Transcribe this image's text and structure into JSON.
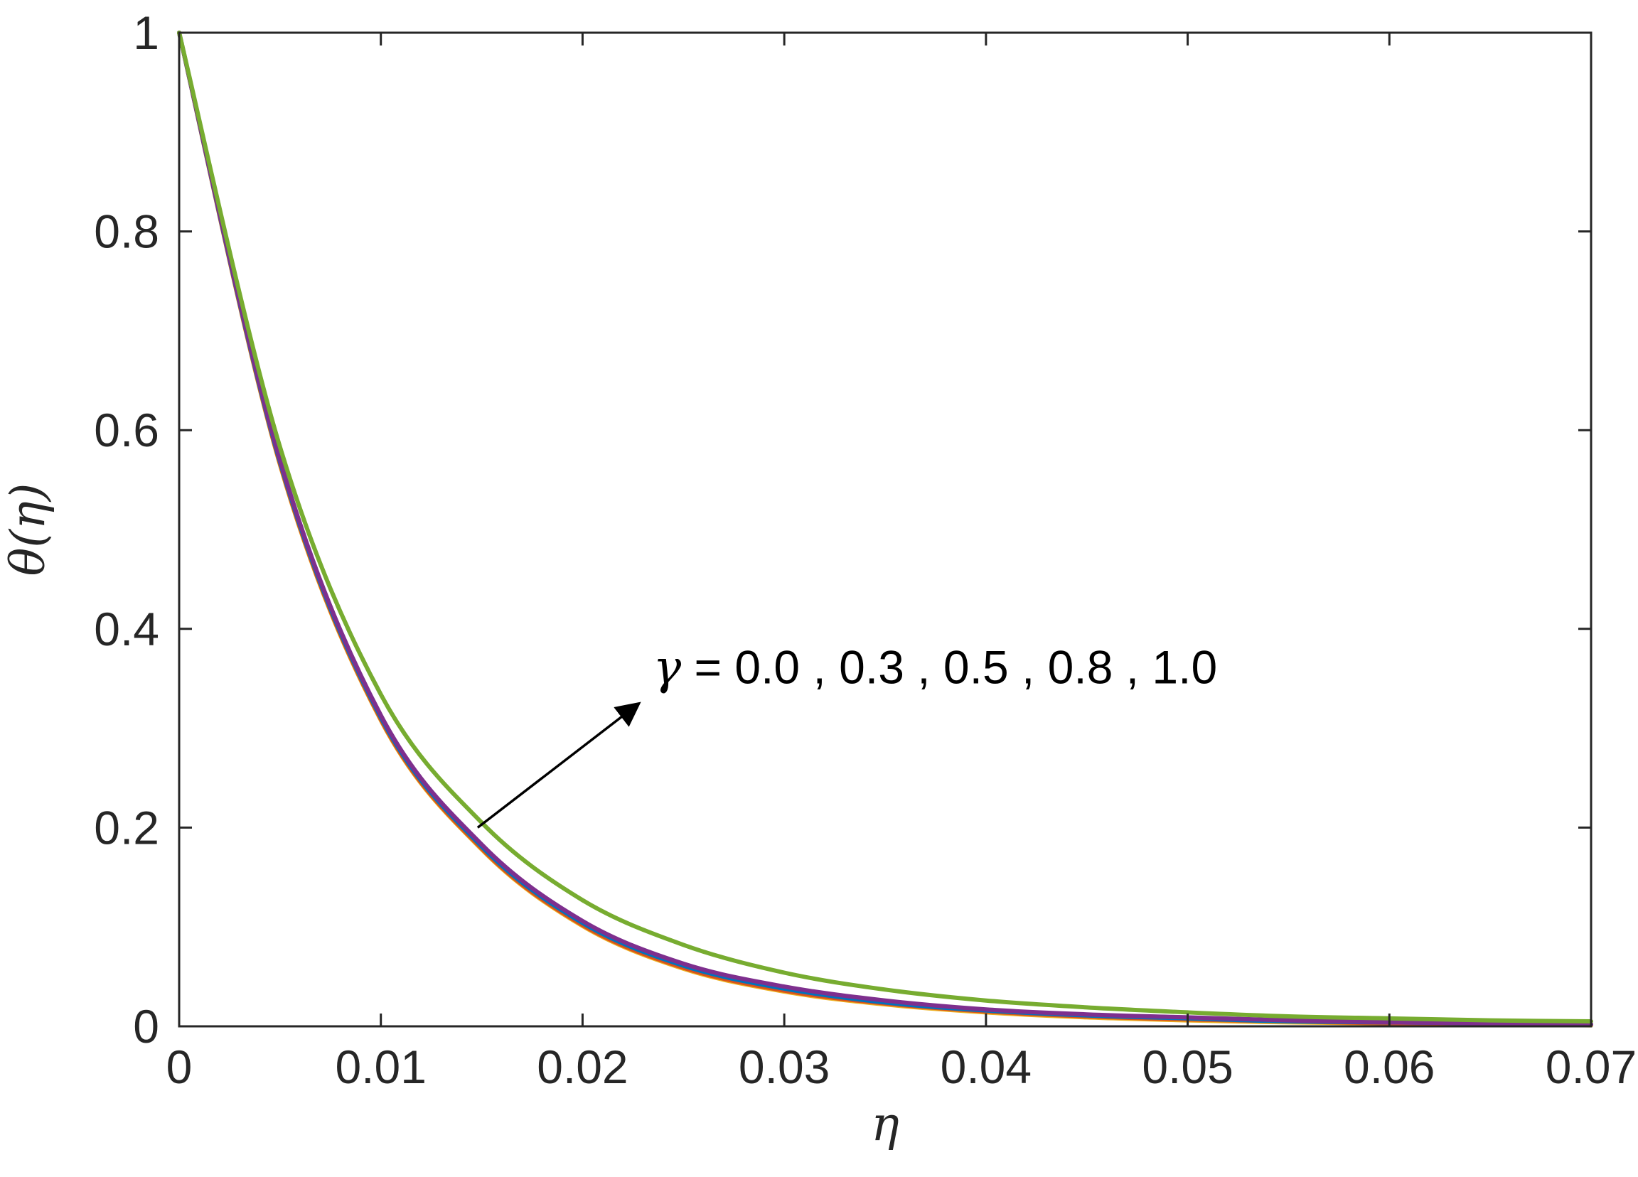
{
  "chart_data": {
    "type": "line",
    "title": "",
    "xlabel": "η",
    "ylabel": "θ(η)",
    "xlim": [
      0,
      0.07
    ],
    "ylim": [
      0,
      1
    ],
    "xticks": [
      0,
      0.01,
      0.02,
      0.03,
      0.04,
      0.05,
      0.06,
      0.07
    ],
    "xtick_labels": [
      "0",
      "0.01",
      "0.02",
      "0.03",
      "0.04",
      "0.05",
      "0.06",
      "0.07"
    ],
    "yticks": [
      0,
      0.2,
      0.4,
      0.6,
      0.8,
      1
    ],
    "ytick_labels": [
      "0",
      "0.2",
      "0.4",
      "0.6",
      "0.8",
      "1"
    ],
    "grid": false,
    "legend": "none",
    "x": [
      0,
      0.005,
      0.01,
      0.015,
      0.02,
      0.025,
      0.03,
      0.035,
      0.04,
      0.045,
      0.05,
      0.055,
      0.06,
      0.065,
      0.07
    ],
    "series": [
      {
        "color": "#EDB120",
        "values": [
          1.0,
          0.565,
          0.308,
          0.178,
          0.101,
          0.058,
          0.035,
          0.022,
          0.014,
          0.009,
          0.006,
          0.004,
          0.003,
          0.002,
          0.001
        ]
      },
      {
        "color": "#D95319",
        "values": [
          1.0,
          0.566,
          0.309,
          0.179,
          0.102,
          0.059,
          0.036,
          0.023,
          0.015,
          0.01,
          0.007,
          0.005,
          0.003,
          0.002,
          0.002
        ]
      },
      {
        "color": "#0072BD",
        "values": [
          1.0,
          0.568,
          0.311,
          0.181,
          0.104,
          0.061,
          0.038,
          0.024,
          0.016,
          0.011,
          0.008,
          0.005,
          0.004,
          0.003,
          0.002
        ]
      },
      {
        "color": "#7E2F8E",
        "values": [
          1.0,
          0.57,
          0.313,
          0.183,
          0.106,
          0.063,
          0.04,
          0.026,
          0.017,
          0.012,
          0.009,
          0.006,
          0.004,
          0.003,
          0.002
        ]
      },
      {
        "color": "#77AC30",
        "values": [
          1.0,
          0.583,
          0.334,
          0.205,
          0.127,
          0.082,
          0.054,
          0.037,
          0.026,
          0.019,
          0.014,
          0.01,
          0.008,
          0.006,
          0.005
        ]
      }
    ],
    "annotations": [
      {
        "symbol": "γ",
        "text": " = 0.0 , 0.3 , 0.5 , 0.8 , 1.0",
        "arrow_from": [
          0.0148,
          0.2
        ],
        "arrow_to": [
          0.0228,
          0.325
        ],
        "text_at": [
          0.0235,
          0.345
        ]
      }
    ]
  }
}
